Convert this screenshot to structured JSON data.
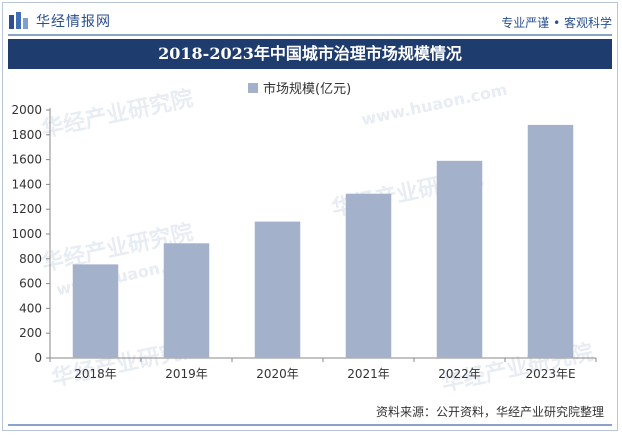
{
  "header": {
    "brand_name": "华经情报网",
    "tagline": "专业严谨 • 客观科学"
  },
  "watermark": {
    "text": "华经产业研究院",
    "url": "www.huaon.com"
  },
  "colors": {
    "bar": "#a3b1ca",
    "title_bg": "#1f3c6e",
    "brand": "#2b4f8f"
  },
  "chart_data": {
    "type": "bar",
    "title": "2018-2023年中国城市治理市场规模情况",
    "categories": [
      "2018年",
      "2019年",
      "2020年",
      "2021年",
      "2022年",
      "2023年E"
    ],
    "series": [
      {
        "name": "市场规模(亿元)",
        "values": [
          755,
          925,
          1100,
          1325,
          1590,
          1880
        ]
      }
    ],
    "yticks": [
      0,
      200,
      400,
      600,
      800,
      1000,
      1200,
      1400,
      1600,
      1800,
      2000
    ],
    "ylim": [
      0,
      2000
    ],
    "xlabel": "",
    "ylabel": "",
    "legend_position": "top-center"
  },
  "footer": {
    "source": "资料来源：公开资料，华经产业研究院整理"
  }
}
